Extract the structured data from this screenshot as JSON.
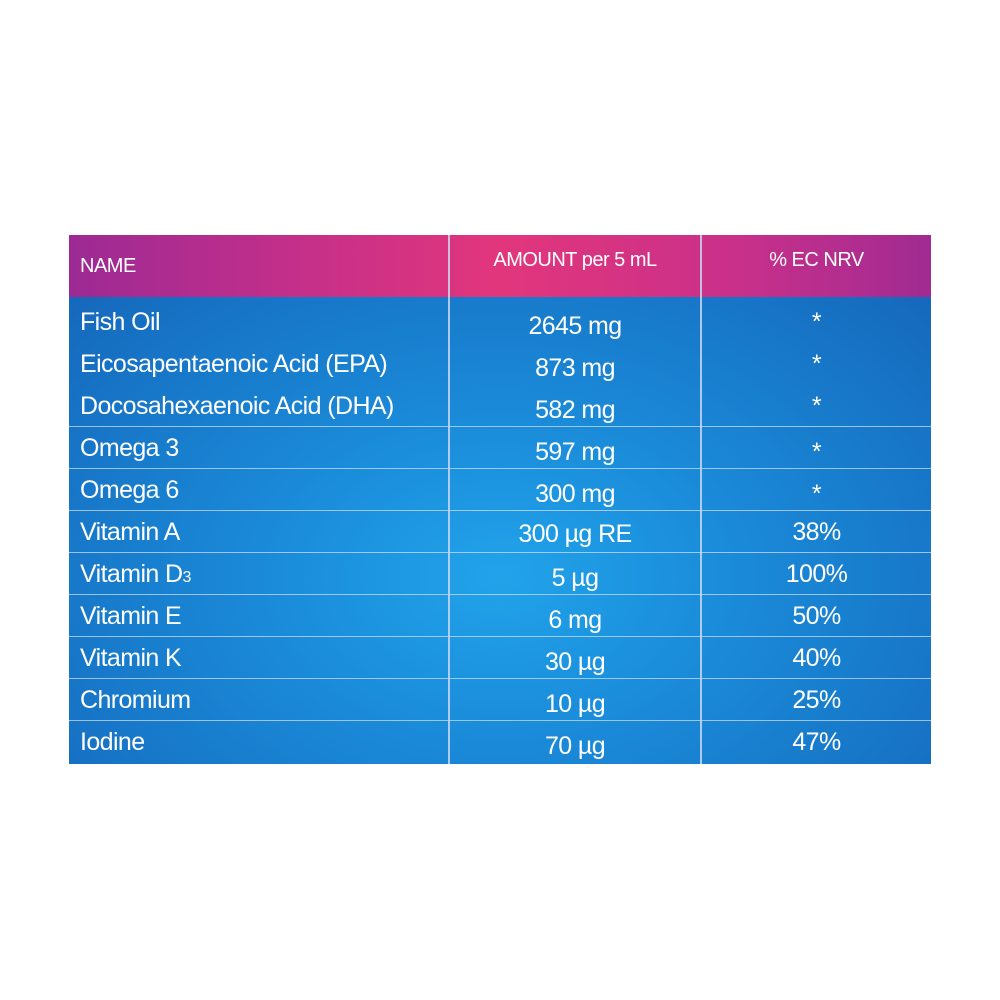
{
  "table": {
    "headers": {
      "name": "NAME",
      "amount": "AMOUNT per  5 mL",
      "nrv": "% EC NRV"
    },
    "rows": [
      {
        "name": "Fish Oil",
        "amount": "2645 mg",
        "nrv": "*"
      },
      {
        "name": "Eicosapentaenoic Acid (EPA)",
        "amount": "873 mg",
        "nrv": "*"
      },
      {
        "name": "Docosahexaenoic Acid (DHA)",
        "amount": "582 mg",
        "nrv": "*"
      },
      {
        "name": "Omega 3",
        "amount": "597 mg",
        "nrv": "*"
      },
      {
        "name": "Omega 6",
        "amount": "300 mg",
        "nrv": "*"
      },
      {
        "name": "Vitamin A",
        "amount": "300 µg RE",
        "nrv": "38%"
      },
      {
        "name": "Vitamin D",
        "name_sub": "3",
        "amount": "5 µg",
        "nrv": "100%"
      },
      {
        "name": "Vitamin E",
        "amount": "6 mg",
        "nrv": "50%"
      },
      {
        "name": "Vitamin K",
        "amount": "30 µg",
        "nrv": "40%"
      },
      {
        "name": "Chromium",
        "amount": "10 µg",
        "nrv": "25%"
      },
      {
        "name": "Iodine",
        "amount": "70 µg",
        "nrv": "47%"
      }
    ]
  }
}
